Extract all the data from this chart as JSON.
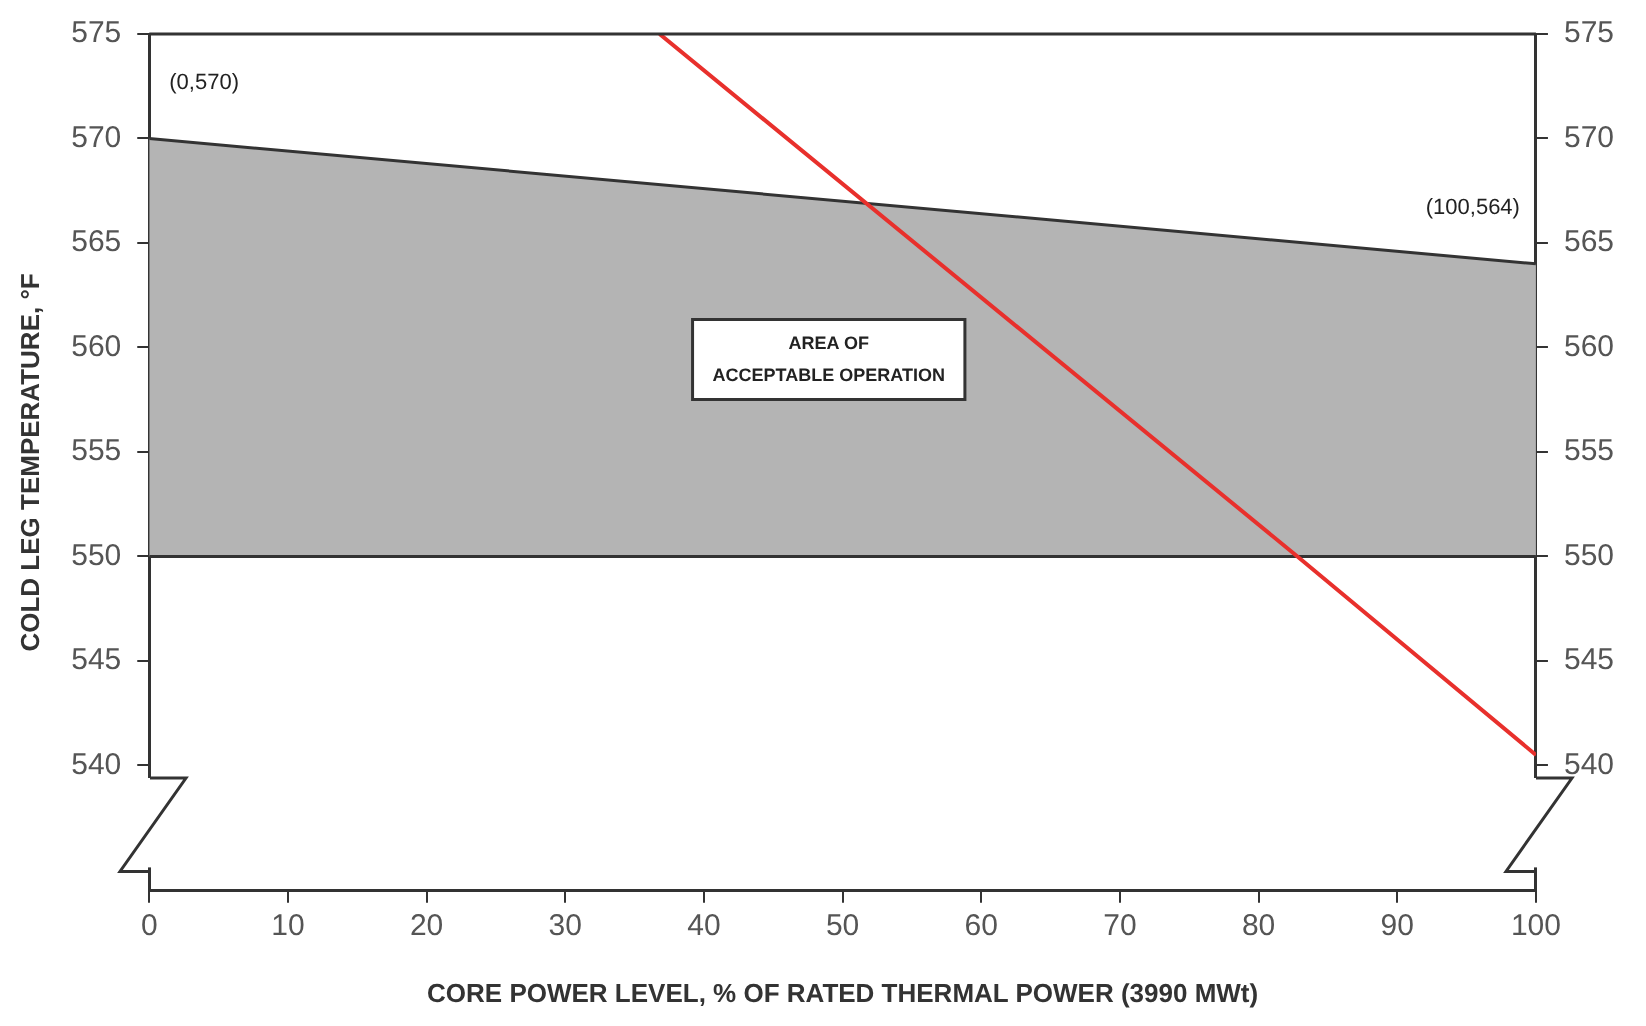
{
  "chart_data": {
    "type": "line",
    "xlabel": "CORE POWER LEVEL, % OF RATED THERMAL POWER (3990 MWt)",
    "ylabel": "COLD LEG TEMPERATURE, °F",
    "series": [
      {
        "type": "area",
        "color": "#b4b4b4",
        "x": [
          0,
          100
        ],
        "values": [
          570,
          564
        ]
      },
      {
        "type": "line",
        "color": "#333333",
        "x": [
          0,
          100
        ],
        "values": [
          550,
          550
        ]
      },
      {
        "type": "line",
        "color": "#e8302c",
        "x": [
          36.8,
          82.8,
          100
        ],
        "values": [
          575,
          550,
          540.5
        ]
      }
    ],
    "xlim": [
      0,
      100
    ],
    "xticks": [
      0,
      10,
      20,
      30,
      40,
      50,
      60,
      70,
      80,
      90,
      100
    ],
    "ylim": [
      534,
      575
    ],
    "yticks": [
      540,
      545,
      550,
      555,
      560,
      565,
      570,
      575
    ],
    "y2lim": [
      534,
      575
    ],
    "y2ticks": [
      540,
      545,
      550,
      555,
      560,
      565,
      570,
      575
    ],
    "annotations": [
      {
        "text": "(0,570)",
        "x": 0,
        "y": 570
      },
      {
        "text": "(100,564)",
        "x": 100,
        "y": 564
      },
      "AREA OF\nACCEPTABLE OPERATION"
    ],
    "grid": false,
    "legend": false,
    "marker": "none",
    "line_style": "solid"
  }
}
